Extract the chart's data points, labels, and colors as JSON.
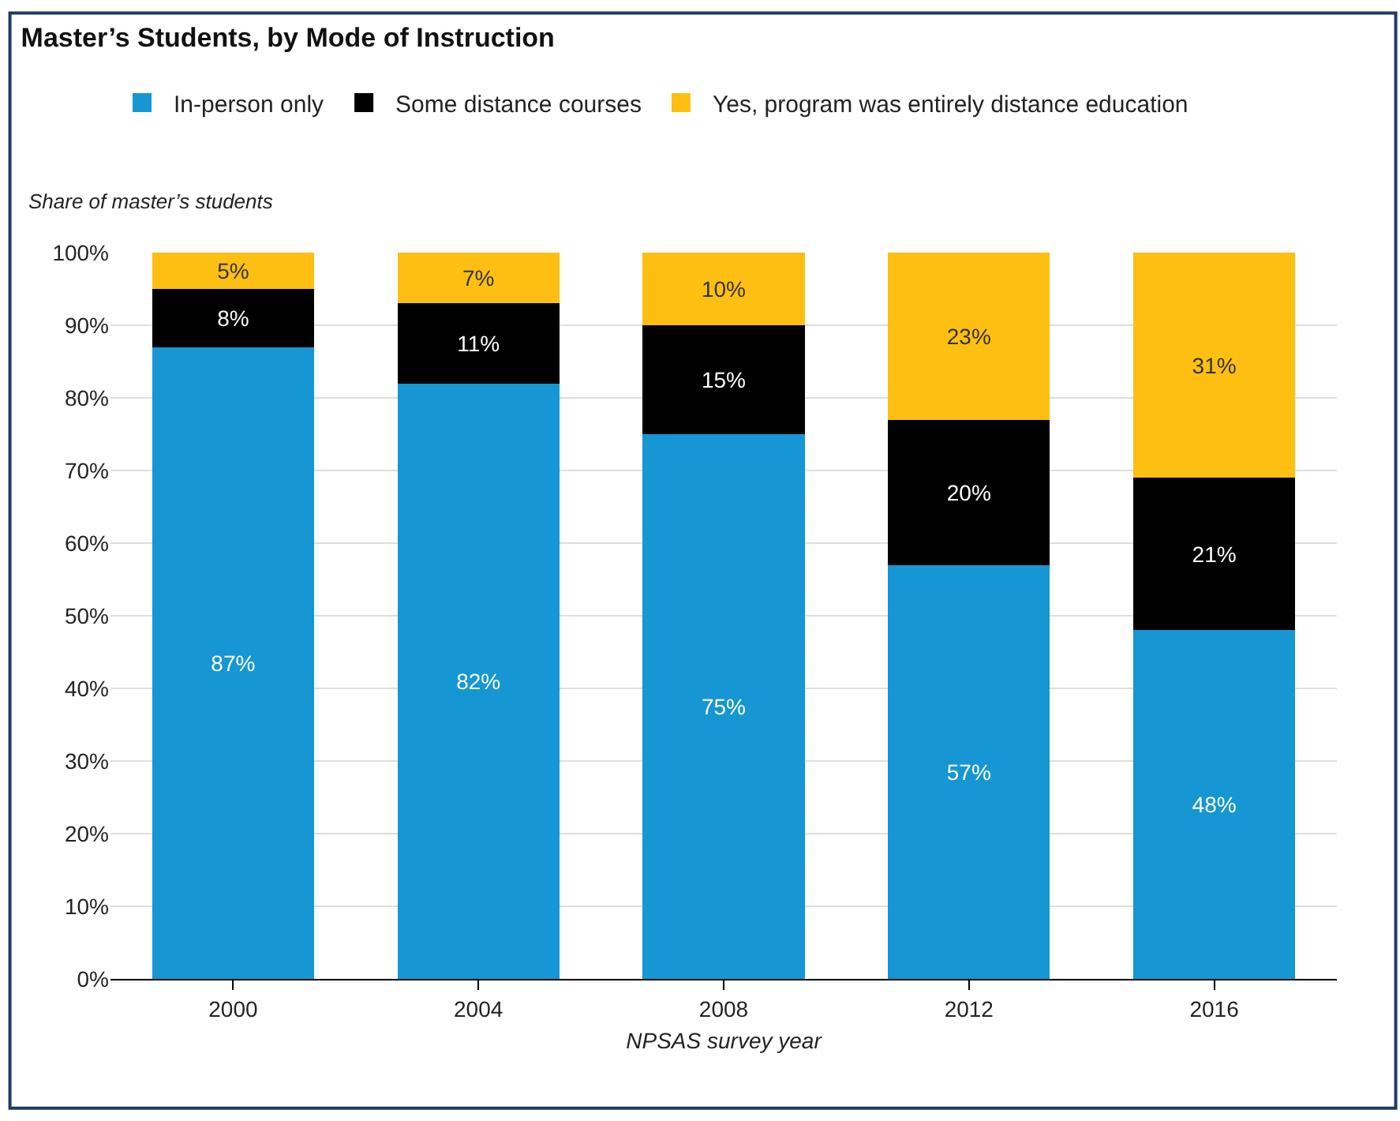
{
  "chart_data": {
    "type": "bar",
    "stacked": true,
    "title": "Master’s Students, by Mode of Instruction",
    "ylabel": "Share of master’s students",
    "xlabel": "NPSAS survey year",
    "categories": [
      "2000",
      "2004",
      "2008",
      "2012",
      "2016"
    ],
    "series": [
      {
        "name": "In-person only",
        "color": "#1696d2",
        "values": [
          87,
          82,
          75,
          57,
          48
        ],
        "value_labels": [
          "87%",
          "82%",
          "75%",
          "57%",
          "48%"
        ]
      },
      {
        "name": "Some distance courses",
        "color": "#000000",
        "values": [
          8,
          11,
          15,
          20,
          21
        ],
        "value_labels": [
          "8%",
          "11%",
          "15%",
          "20%",
          "21%"
        ]
      },
      {
        "name": "Yes, program was entirely distance education",
        "color": "#fdbf11",
        "values": [
          5,
          7,
          10,
          23,
          31
        ],
        "value_labels": [
          "5%",
          "7%",
          "10%",
          "23%",
          "31%"
        ]
      }
    ],
    "ylim": [
      0,
      100
    ],
    "yticks": [
      {
        "value": 0,
        "label": "0%"
      },
      {
        "value": 10,
        "label": "10%"
      },
      {
        "value": 20,
        "label": "20%"
      },
      {
        "value": 30,
        "label": "30%"
      },
      {
        "value": 40,
        "label": "40%"
      },
      {
        "value": 50,
        "label": "50%"
      },
      {
        "value": 60,
        "label": "60%"
      },
      {
        "value": 70,
        "label": "70%"
      },
      {
        "value": 80,
        "label": "80%"
      },
      {
        "value": 90,
        "label": "90%"
      },
      {
        "value": 100,
        "label": "100%"
      }
    ],
    "grid": "y",
    "legend": "top"
  }
}
